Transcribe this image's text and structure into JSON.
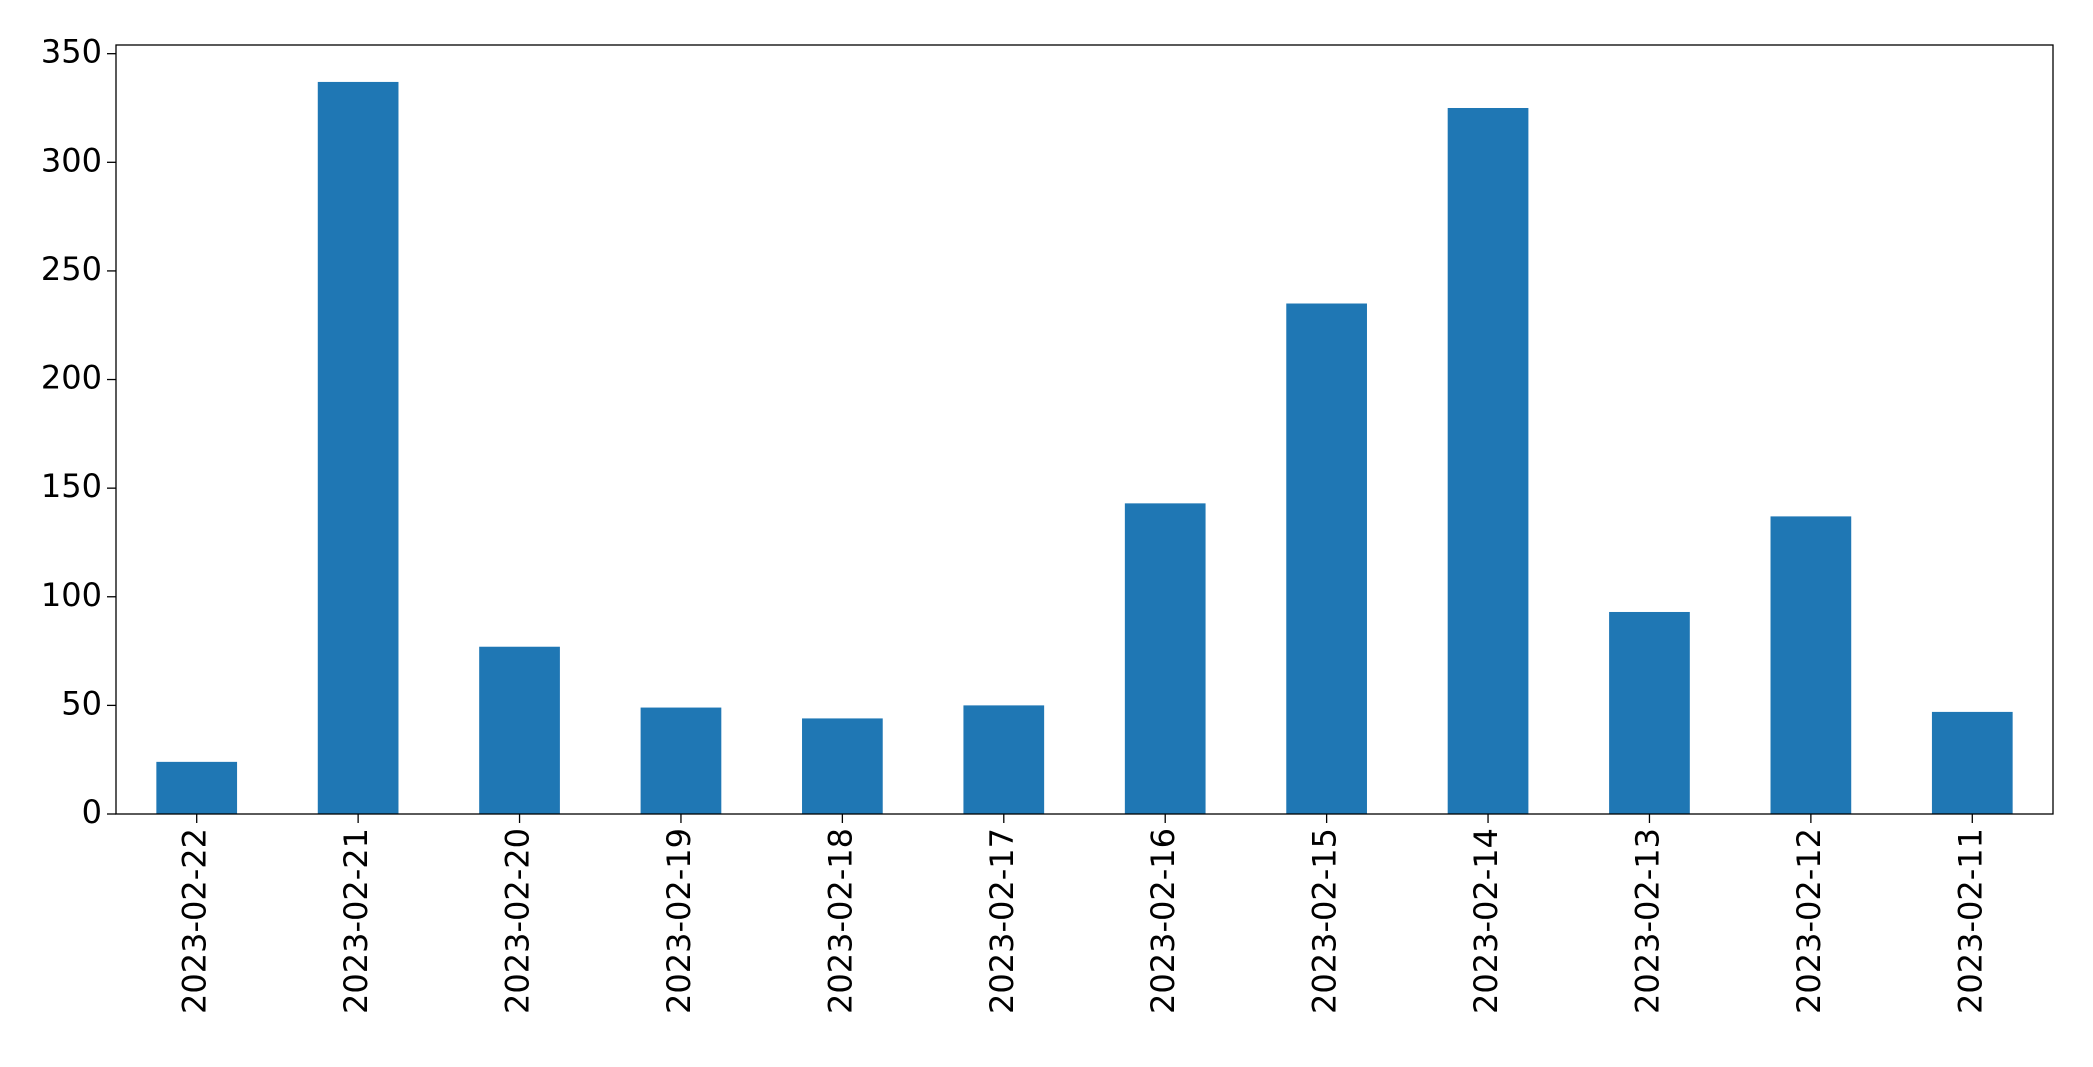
{
  "chart_data": {
    "type": "bar",
    "categories": [
      "2023-02-22",
      "2023-02-21",
      "2023-02-20",
      "2023-02-19",
      "2023-02-18",
      "2023-02-17",
      "2023-02-16",
      "2023-02-15",
      "2023-02-14",
      "2023-02-13",
      "2023-02-12",
      "2023-02-11"
    ],
    "values": [
      24,
      337,
      77,
      49,
      44,
      50,
      143,
      235,
      325,
      93,
      137,
      47
    ],
    "color": "#1f77b4",
    "ylim": [
      0,
      354
    ],
    "yticks": [
      0,
      50,
      100,
      150,
      200,
      250,
      300,
      350
    ],
    "grid": false
  }
}
